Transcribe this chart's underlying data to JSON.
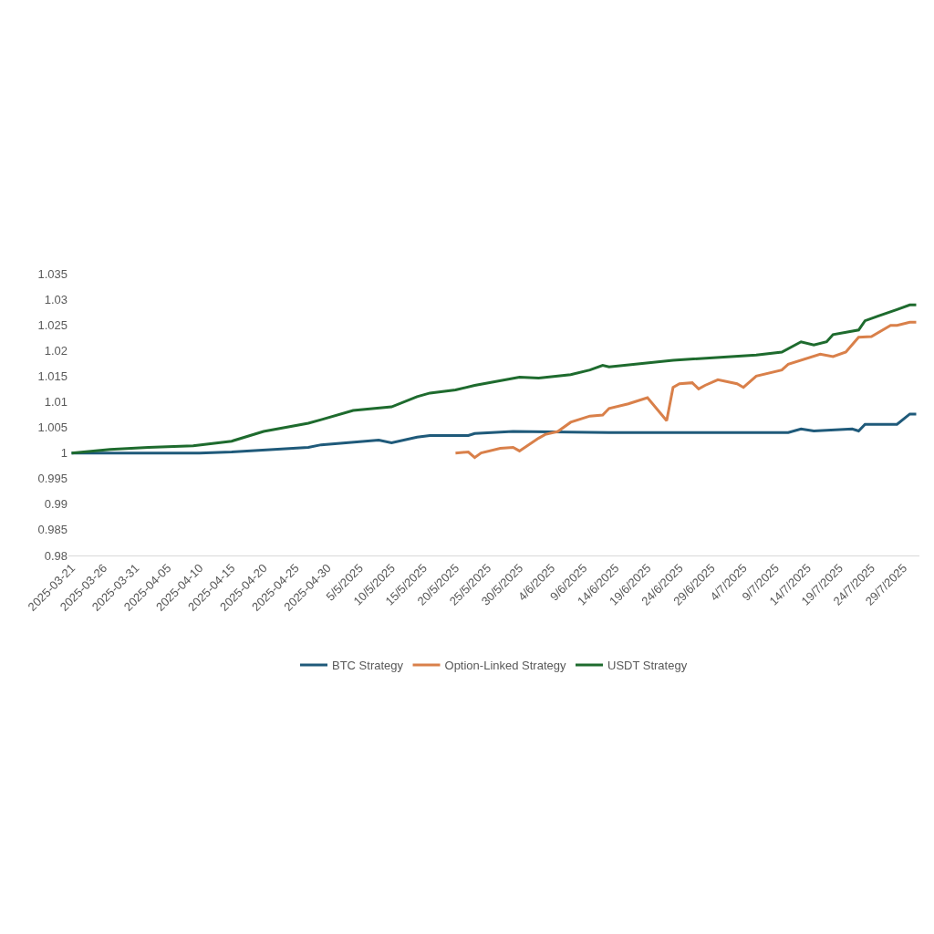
{
  "chart_data": {
    "type": "line",
    "series": [
      {
        "name": "BTC Strategy",
        "color": "#1f5a7a",
        "x": [
          "2025-03-21",
          "2025-04-10",
          "2025-04-15",
          "2025-04-27",
          "2025-04-29",
          "2025-05-08",
          "2025-05-10",
          "2025-05-14",
          "2025-05-16",
          "2025-05-22",
          "2025-05-23",
          "2025-05-29",
          "2025-06-13",
          "2025-07-11",
          "2025-07-13",
          "2025-07-15",
          "2025-07-21",
          "2025-07-22",
          "2025-07-23",
          "2025-07-28",
          "2025-07-30",
          "2025-07-31"
        ],
        "values": [
          1.0,
          1.0,
          1.0002,
          1.0011,
          1.0016,
          1.0025,
          1.002,
          1.0031,
          1.0034,
          1.0034,
          1.0038,
          1.0042,
          1.004,
          1.004,
          1.0047,
          1.0043,
          1.0047,
          1.0043,
          1.0056,
          1.0056,
          1.0076,
          1.0076
        ]
      },
      {
        "name": "Option-Linked Strategy",
        "color": "#d9804a",
        "x": [
          "2025-05-20",
          "2025-05-22",
          "2025-05-23",
          "2025-05-24",
          "2025-05-27",
          "2025-05-29",
          "2025-05-30",
          "2025-06-02",
          "2025-06-03",
          "2025-06-05",
          "2025-06-07",
          "2025-06-10",
          "2025-06-12",
          "2025-06-13",
          "2025-06-16",
          "2025-06-19",
          "2025-06-22",
          "2025-06-23",
          "2025-06-24",
          "2025-06-26",
          "2025-06-27",
          "2025-06-28",
          "2025-06-30",
          "2025-07-03",
          "2025-07-04",
          "2025-07-06",
          "2025-07-10",
          "2025-07-11",
          "2025-07-16",
          "2025-07-18",
          "2025-07-20",
          "2025-07-22",
          "2025-07-24",
          "2025-07-27",
          "2025-07-28",
          "2025-07-30",
          "2025-07-31"
        ],
        "values": [
          1.0,
          1.0002,
          0.9991,
          1.0,
          1.0009,
          1.0011,
          1.0004,
          1.0029,
          1.0036,
          1.0042,
          1.006,
          1.0072,
          1.0074,
          1.0087,
          1.0096,
          1.0108,
          1.0063,
          1.0128,
          1.0135,
          1.0137,
          1.0125,
          1.0132,
          1.0143,
          1.0135,
          1.0128,
          1.015,
          1.0162,
          1.0173,
          1.0193,
          1.0188,
          1.0197,
          1.0226,
          1.0227,
          1.0249,
          1.0249,
          1.0255,
          1.0255
        ]
      },
      {
        "name": "USDT Strategy",
        "color": "#1e6b2e",
        "x": [
          "2025-03-21",
          "2025-03-27",
          "2025-04-02",
          "2025-04-09",
          "2025-04-15",
          "2025-04-20",
          "2025-04-27",
          "2025-04-29",
          "2025-05-04",
          "2025-05-10",
          "2025-05-14",
          "2025-05-16",
          "2025-05-20",
          "2025-05-23",
          "2025-05-30",
          "2025-06-02",
          "2025-06-07",
          "2025-06-10",
          "2025-06-12",
          "2025-06-13",
          "2025-06-23",
          "2025-07-06",
          "2025-07-10",
          "2025-07-13",
          "2025-07-15",
          "2025-07-17",
          "2025-07-18",
          "2025-07-22",
          "2025-07-23",
          "2025-07-25",
          "2025-07-28",
          "2025-07-30",
          "2025-07-31"
        ],
        "values": [
          1.0,
          1.0007,
          1.0011,
          1.0014,
          1.0023,
          1.0042,
          1.0058,
          1.0065,
          1.0083,
          1.009,
          1.011,
          1.0117,
          1.0123,
          1.0132,
          1.0148,
          1.0146,
          1.0153,
          1.0162,
          1.0171,
          1.0168,
          1.0181,
          1.0191,
          1.0197,
          1.0217,
          1.0211,
          1.0217,
          1.0231,
          1.024,
          1.0258,
          1.0267,
          1.028,
          1.0289,
          1.0289
        ]
      }
    ],
    "xlim": [
      "2025-03-20T12:00",
      "2025-07-31T12:00"
    ],
    "xticks": [
      {
        "value": "2025-03-21",
        "label": "2025-03-21"
      },
      {
        "value": "2025-03-26",
        "label": "2025-03-26"
      },
      {
        "value": "2025-03-31",
        "label": "2025-03-31"
      },
      {
        "value": "2025-04-05",
        "label": "2025-04-05"
      },
      {
        "value": "2025-04-10",
        "label": "2025-04-10"
      },
      {
        "value": "2025-04-15",
        "label": "2025-04-15"
      },
      {
        "value": "2025-04-20",
        "label": "2025-04-20"
      },
      {
        "value": "2025-04-25",
        "label": "2025-04-25"
      },
      {
        "value": "2025-04-30",
        "label": "2025-04-30"
      },
      {
        "value": "2025-05-05",
        "label": "5/5/2025"
      },
      {
        "value": "2025-05-10",
        "label": "10/5/2025"
      },
      {
        "value": "2025-05-15",
        "label": "15/5/2025"
      },
      {
        "value": "2025-05-20",
        "label": "20/5/2025"
      },
      {
        "value": "2025-05-25",
        "label": "25/5/2025"
      },
      {
        "value": "2025-05-30",
        "label": "30/5/2025"
      },
      {
        "value": "2025-06-04",
        "label": "4/6/2025"
      },
      {
        "value": "2025-06-09",
        "label": "9/6/2025"
      },
      {
        "value": "2025-06-14",
        "label": "14/6/2025"
      },
      {
        "value": "2025-06-19",
        "label": "19/6/2025"
      },
      {
        "value": "2025-06-24",
        "label": "24/6/2025"
      },
      {
        "value": "2025-06-29",
        "label": "29/6/2025"
      },
      {
        "value": "2025-07-04",
        "label": "4/7/2025"
      },
      {
        "value": "2025-07-09",
        "label": "9/7/2025"
      },
      {
        "value": "2025-07-14",
        "label": "14/7/2025"
      },
      {
        "value": "2025-07-19",
        "label": "19/7/2025"
      },
      {
        "value": "2025-07-24",
        "label": "24/7/2025"
      },
      {
        "value": "2025-07-29",
        "label": "29/7/2025"
      }
    ],
    "ylim": [
      0.98,
      1.035
    ],
    "yticks": [
      0.98,
      0.985,
      0.99,
      0.995,
      1,
      1.005,
      1.01,
      1.015,
      1.02,
      1.025,
      1.03,
      1.035
    ],
    "grid": false,
    "legend": "bottom",
    "marker": "none",
    "line_style": "solid"
  }
}
